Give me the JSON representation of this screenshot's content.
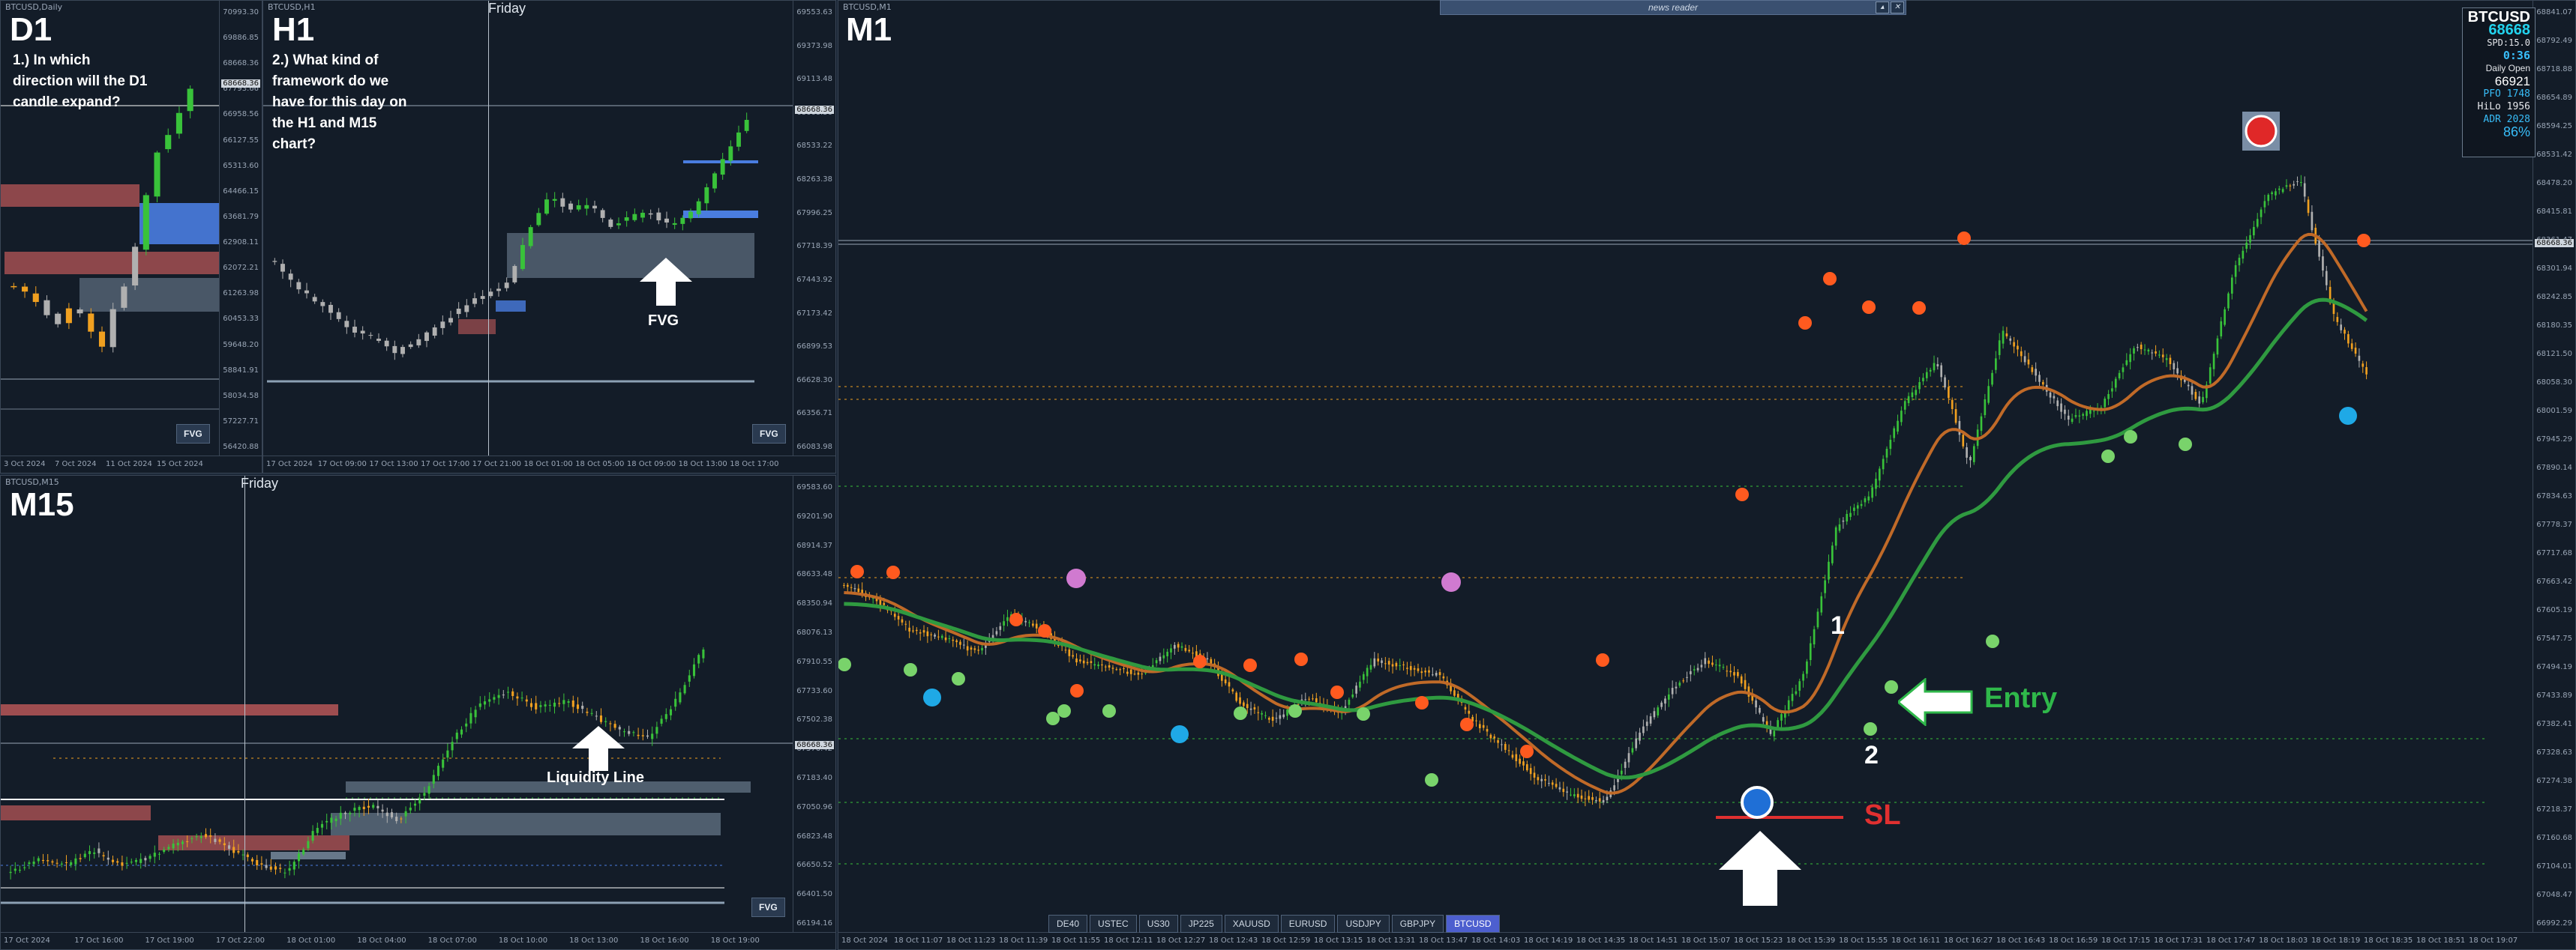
{
  "panels": {
    "d1": {
      "title": "BTCUSD,Daily",
      "timeframe": "D1",
      "question": "1.) In which direction will the D1 candle expand?",
      "fvg_label": "FVG",
      "yticks": [
        "70993.30",
        "69886.85",
        "68668.36",
        "67793.66",
        "66958.56",
        "66127.55",
        "65313.60",
        "64466.15",
        "63681.79",
        "62908.11",
        "62072.21",
        "61263.98",
        "60453.33",
        "59648.20",
        "58841.91",
        "58034.58",
        "57227.71",
        "56420.88"
      ],
      "xticks": [
        "3 Oct 2024",
        "7 Oct 2024",
        "11 Oct 2024",
        "15 Oct 2024"
      ],
      "price_tag": "68668.36"
    },
    "h1": {
      "title": "BTCUSD,H1",
      "timeframe": "H1",
      "question": "2.) What kind of framework do we have for this day on the H1 and M15 chart?",
      "day_label": "Friday",
      "annotation": "FVG",
      "fvg_label": "FVG",
      "yticks": [
        "69553.63",
        "69373.98",
        "69113.48",
        "68668.36",
        "68533.22",
        "68263.38",
        "67996.25",
        "67718.39",
        "67443.92",
        "67173.42",
        "66899.53",
        "66628.30",
        "66356.71",
        "66083.98"
      ],
      "xticks": [
        "17 Oct 2024",
        "17 Oct 09:00",
        "17 Oct 13:00",
        "17 Oct 17:00",
        "17 Oct 21:00",
        "18 Oct 01:00",
        "18 Oct 05:00",
        "18 Oct 09:00",
        "18 Oct 13:00",
        "18 Oct 17:00"
      ],
      "price_tag": "68668.36"
    },
    "m15": {
      "title": "BTCUSD,M15",
      "timeframe": "M15",
      "day_label": "Friday",
      "annotation": "Liquidity Line",
      "fvg_label": "FVG",
      "yticks": [
        "69583.60",
        "69201.90",
        "68914.37",
        "68633.48",
        "68350.94",
        "68076.13",
        "67910.55",
        "67733.60",
        "67502.38",
        "67376.42",
        "67183.40",
        "67050.96",
        "66823.48",
        "66650.52",
        "66401.50",
        "66194.16"
      ],
      "xticks": [
        "17 Oct 2024",
        "17 Oct 16:00",
        "17 Oct 19:00",
        "17 Oct 22:00",
        "18 Oct 01:00",
        "18 Oct 04:00",
        "18 Oct 07:00",
        "18 Oct 10:00",
        "18 Oct 13:00",
        "18 Oct 16:00",
        "18 Oct 19:00"
      ],
      "price_tag": "68668.36"
    },
    "m1": {
      "title": "BTCUSD,M1",
      "timeframe": "M1",
      "news_reader": "news reader",
      "annotation_entry": "Entry",
      "annotation_sl": "SL",
      "label_1": "1",
      "label_2": "2",
      "yticks": [
        "68841.07",
        "68792.49",
        "68718.88",
        "68654.89",
        "68594.25",
        "68531.42",
        "68478.20",
        "68415.81",
        "68361.47",
        "68301.94",
        "68242.85",
        "68180.35",
        "68121.50",
        "68058.30",
        "68001.59",
        "67945.29",
        "67890.14",
        "67834.63",
        "67778.37",
        "67717.68",
        "67663.42",
        "67605.19",
        "67547.75",
        "67494.19",
        "67433.89",
        "67382.41",
        "67328.63",
        "67274.38",
        "67218.37",
        "67160.68",
        "67104.01",
        "67048.47",
        "66992.29"
      ],
      "xticks": [
        "18 Oct 2024",
        "18 Oct 11:07",
        "18 Oct 11:23",
        "18 Oct 11:39",
        "18 Oct 11:55",
        "18 Oct 12:11",
        "18 Oct 12:27",
        "18 Oct 12:43",
        "18 Oct 12:59",
        "18 Oct 13:15",
        "18 Oct 13:31",
        "18 Oct 13:47",
        "18 Oct 14:03",
        "18 Oct 14:19",
        "18 Oct 14:35",
        "18 Oct 14:51",
        "18 Oct 15:07",
        "18 Oct 15:23",
        "18 Oct 15:39",
        "18 Oct 15:55",
        "18 Oct 16:11",
        "18 Oct 16:27",
        "18 Oct 16:43",
        "18 Oct 16:59",
        "18 Oct 17:15",
        "18 Oct 17:31",
        "18 Oct 17:47",
        "18 Oct 18:03",
        "18 Oct 18:19",
        "18 Oct 18:35",
        "18 Oct 18:51",
        "18 Oct 19:07"
      ],
      "price_tag": "68668.36"
    }
  },
  "infobox": {
    "symbol": "BTCUSD",
    "price": "68668",
    "spread": "SPD:15.0",
    "timer": "0:36",
    "daily_open_label": "Daily Open",
    "daily_open": "66921",
    "pfo": "PFO 1748",
    "hilo": "HiLo 1956",
    "adr": "ADR 2028",
    "pct": "86%"
  },
  "symbols": [
    "DE40",
    "USTEC",
    "US30",
    "JP225",
    "XAUUSD",
    "EURUSD",
    "USDJPY",
    "GBPJPY",
    "BTCUSD"
  ],
  "active_symbol": "BTCUSD",
  "colors": {
    "bull": "#39c23a",
    "bear": "#f0a020",
    "neutral": "#b0b0b0",
    "ema_fast": "#c06a28",
    "ema_slow": "#2f9a40",
    "bear_zone": "#c25a5a",
    "bull_zone": "#4a7de0",
    "grey_zone": "#8ca0b4",
    "sl": "#e03030",
    "entry": "#2fb84a"
  }
}
